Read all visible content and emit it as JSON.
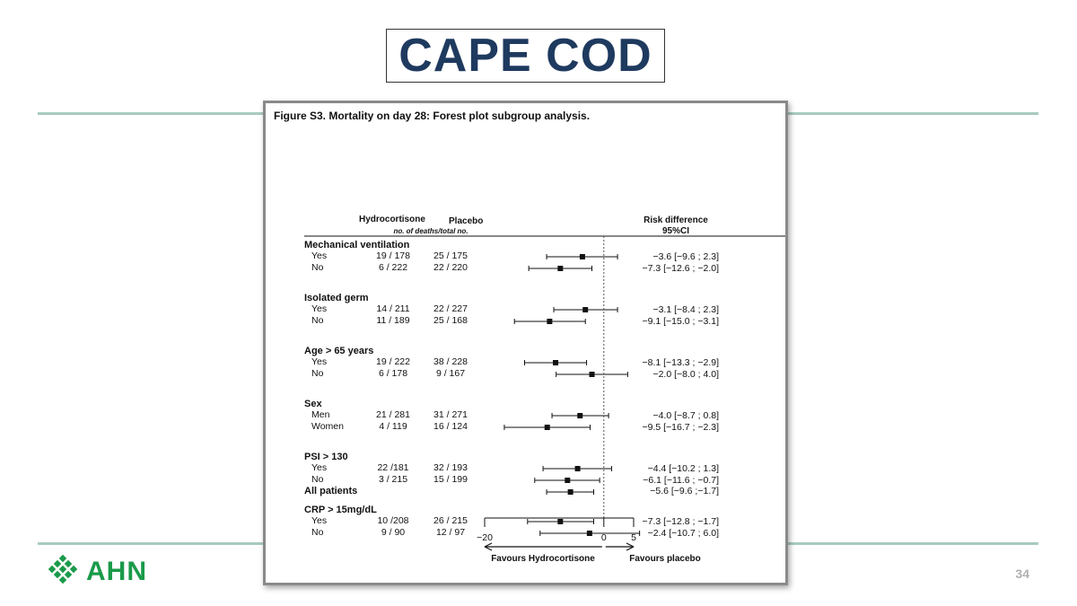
{
  "slide": {
    "title": "CAPE COD",
    "page_number": "34",
    "logo_text": "AHN"
  },
  "figure": {
    "caption": "Figure S3. Mortality on day 28: Forest plot subgroup analysis.",
    "headers": {
      "hydrocortisone": "Hydrocortisone",
      "placebo": "Placebo",
      "subheader": "no. of deaths/total no.",
      "risk_difference": "Risk difference",
      "ci": "95%CI"
    },
    "favours_left": "Favours Hydrocortisone",
    "favours_right": "Favours placebo"
  },
  "chart_data": {
    "type": "forest",
    "xlim": [
      -20,
      5
    ],
    "x_ticks": [
      "−20",
      "0",
      "5"
    ],
    "reference_line": 0,
    "groups": [
      {
        "name": "Mechanical ventilation",
        "rows": [
          {
            "label": "Yes",
            "hc": "19 / 178",
            "pl": "25 / 175",
            "ci_text": "−3.6 [−9.6 ; 2.3]",
            "est": -3.6,
            "lo": -9.6,
            "hi": 2.3
          },
          {
            "label": "No",
            "hc": "6 / 222",
            "pl": "22 / 220",
            "ci_text": "−7.3 [−12.6 ; −2.0]",
            "est": -7.3,
            "lo": -12.6,
            "hi": -2.0
          }
        ]
      },
      {
        "name": "Isolated germ",
        "rows": [
          {
            "label": "Yes",
            "hc": "14 / 211",
            "pl": "22 / 227",
            "ci_text": "−3.1 [−8.4 ; 2.3]",
            "est": -3.1,
            "lo": -8.4,
            "hi": 2.3
          },
          {
            "label": "No",
            "hc": "11 / 189",
            "pl": "25 / 168",
            "ci_text": "−9.1 [−15.0 ; −3.1]",
            "est": -9.1,
            "lo": -15.0,
            "hi": -3.1
          }
        ]
      },
      {
        "name": "Age > 65 years",
        "rows": [
          {
            "label": "Yes",
            "hc": "19 / 222",
            "pl": "38 / 228",
            "ci_text": "−8.1 [−13.3 ; −2.9]",
            "est": -8.1,
            "lo": -13.3,
            "hi": -2.9
          },
          {
            "label": "No",
            "hc": "6 / 178",
            "pl": "9 / 167",
            "ci_text": "−2.0 [−8.0 ; 4.0]",
            "est": -2.0,
            "lo": -8.0,
            "hi": 4.0
          }
        ]
      },
      {
        "name": "Sex",
        "rows": [
          {
            "label": "Men",
            "hc": "21 / 281",
            "pl": "31 / 271",
            "ci_text": "−4.0 [−8.7 ; 0.8]",
            "est": -4.0,
            "lo": -8.7,
            "hi": 0.8
          },
          {
            "label": "Women",
            "hc": "4 / 119",
            "pl": "16 / 124",
            "ci_text": "−9.5 [−16.7 ; −2.3]",
            "est": -9.5,
            "lo": -16.7,
            "hi": -2.3
          }
        ]
      },
      {
        "name": "PSI > 130",
        "rows": [
          {
            "label": "Yes",
            "hc": "22 /181",
            "pl": "32 / 193",
            "ci_text": "−4.4 [−10.2 ; 1.3]",
            "est": -4.4,
            "lo": -10.2,
            "hi": 1.3
          },
          {
            "label": "No",
            "hc": "3 / 215",
            "pl": "15 / 199",
            "ci_text": "−6.1 [−11.6 ; −0.7]",
            "est": -6.1,
            "lo": -11.6,
            "hi": -0.7
          }
        ]
      },
      {
        "name": "CRP > 15mg/dL",
        "rows": [
          {
            "label": "Yes",
            "hc": "10 /208",
            "pl": "26 / 215",
            "ci_text": "−7.3 [−12.8 ; −1.7]",
            "est": -7.3,
            "lo": -12.8,
            "hi": -1.7
          },
          {
            "label": "No",
            "hc": "9 / 90",
            "pl": "12 / 97",
            "ci_text": "−2.4 [−10.7 ; 6.0]",
            "est": -2.4,
            "lo": -10.7,
            "hi": 6.0
          }
        ]
      }
    ],
    "overall": {
      "label": "All patients",
      "ci_text": "−5.6 [−9.6 ;−1.7]",
      "est": -5.6,
      "lo": -9.6,
      "hi": -1.7
    }
  }
}
